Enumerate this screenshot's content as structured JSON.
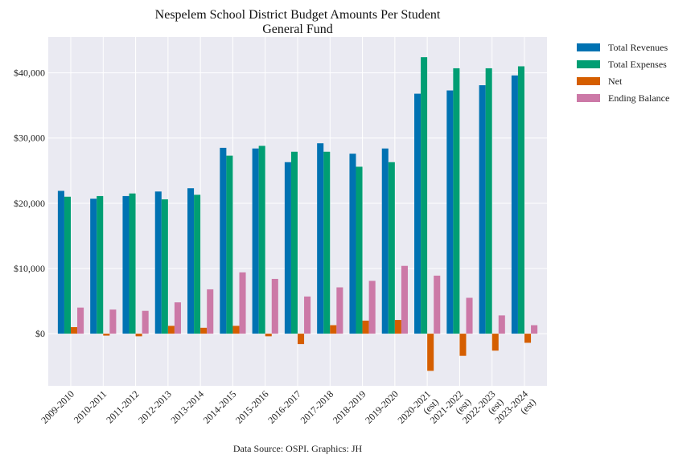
{
  "chart_data": {
    "type": "bar",
    "title": [
      "Nespelem School District Budget Amounts Per Student",
      "General Fund"
    ],
    "source": "Data Source: OSPI. Graphics: JH",
    "categories": [
      [
        "2009-2010"
      ],
      [
        "2010-2011"
      ],
      [
        "2011-2012"
      ],
      [
        "2012-2013"
      ],
      [
        "2013-2014"
      ],
      [
        "2014-2015"
      ],
      [
        "2015-2016"
      ],
      [
        "2016-2017"
      ],
      [
        "2017-2018"
      ],
      [
        "2018-2019"
      ],
      [
        "2019-2020"
      ],
      [
        "2020-2021",
        "(est)"
      ],
      [
        "2021-2022",
        "(est)"
      ],
      [
        "2022-2023",
        "(est)"
      ],
      [
        "2023-2024",
        "(est)"
      ]
    ],
    "y_ticks": [
      0,
      10000,
      20000,
      30000,
      40000
    ],
    "y_tick_labels": [
      "$0",
      "$10,000",
      "$20,000",
      "$30,000",
      "$40,000"
    ],
    "ylim": [
      -8000,
      45500
    ],
    "grid": true,
    "legend_position": "outside-right",
    "series": [
      {
        "name": "Total Revenues",
        "color": "#0072B2",
        "values": [
          21900,
          20700,
          21100,
          21800,
          22300,
          28500,
          28400,
          26300,
          29200,
          27600,
          28400,
          36800,
          37300,
          38100,
          39600
        ]
      },
      {
        "name": "Total Expenses",
        "color": "#009E73",
        "values": [
          21000,
          21100,
          21500,
          20600,
          21300,
          27300,
          28800,
          27900,
          27900,
          25600,
          26300,
          42400,
          40700,
          40700,
          41000
        ]
      },
      {
        "name": "Net",
        "color": "#D55E00",
        "values": [
          1000,
          -300,
          -400,
          1200,
          900,
          1200,
          -400,
          -1600,
          1300,
          2000,
          2100,
          -5700,
          -3400,
          -2600,
          -1400
        ]
      },
      {
        "name": "Ending Balance",
        "color": "#CC79A7",
        "values": [
          4000,
          3700,
          3500,
          4800,
          6800,
          9400,
          8400,
          5700,
          7100,
          8100,
          10400,
          8900,
          5500,
          2800,
          1300
        ]
      }
    ]
  }
}
